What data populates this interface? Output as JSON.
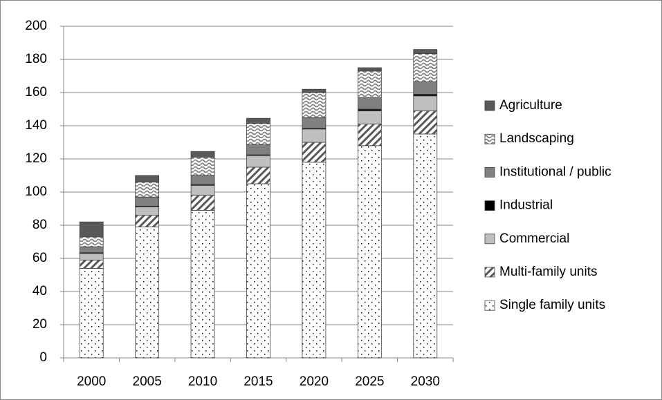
{
  "chart_data": {
    "type": "stacked_bar",
    "categories": [
      "2000",
      "2005",
      "2010",
      "2015",
      "2020",
      "2025",
      "2030"
    ],
    "ylim": [
      0,
      200
    ],
    "yticks": [
      0,
      20,
      40,
      60,
      80,
      100,
      120,
      140,
      160,
      180,
      200
    ],
    "grid": true,
    "legend": "right",
    "series": [
      {
        "name": "Single family units",
        "color": "#ffffff",
        "pattern": "dots",
        "values": [
          54,
          79,
          89,
          105,
          118,
          128,
          135
        ]
      },
      {
        "name": "Multi-family units",
        "color": "#595959",
        "pattern": "diagonal",
        "values": [
          5,
          7,
          9,
          10,
          12,
          13,
          14
        ]
      },
      {
        "name": "Commercial",
        "color": "#bfbfbf",
        "pattern": "solid",
        "values": [
          4,
          5,
          6,
          7,
          8,
          8,
          9
        ]
      },
      {
        "name": "Industrial",
        "color": "#000000",
        "pattern": "solid",
        "values": [
          0.5,
          0.5,
          0.5,
          0.5,
          0.5,
          1,
          1
        ]
      },
      {
        "name": "Institutional / public",
        "color": "#808080",
        "pattern": "solid",
        "values": [
          3.5,
          5.5,
          5.5,
          6,
          6.5,
          7,
          7.5
        ]
      },
      {
        "name": "Landscaping",
        "color": "#7f7f7f",
        "pattern": "wave",
        "values": [
          6,
          9,
          11,
          13,
          15,
          16,
          17
        ]
      },
      {
        "name": "Agriculture",
        "color": "#595959",
        "pattern": "solid",
        "values": [
          9,
          4,
          3.5,
          3,
          2,
          2,
          2.5
        ]
      }
    ]
  }
}
